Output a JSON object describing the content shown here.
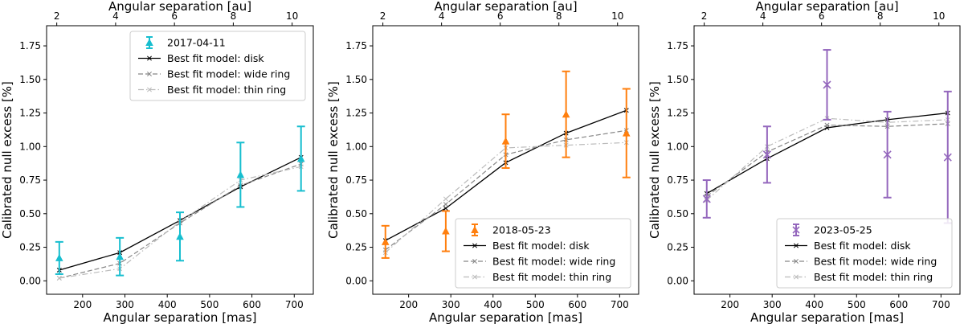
{
  "chart_data": [
    {
      "type": "line",
      "xlabel": "Angular separation [mas]",
      "ylabel": "Calibrated null excess [%]",
      "x2label": "Angular separation [au]",
      "xlim": [
        115,
        745
      ],
      "ylim": [
        -0.1,
        1.9
      ],
      "xticks": [
        200,
        300,
        400,
        500,
        600,
        700
      ],
      "yticks": [
        0.0,
        0.25,
        0.5,
        0.75,
        1.0,
        1.25,
        1.5,
        1.75
      ],
      "x2ticks": [
        2,
        4,
        6,
        8,
        10
      ],
      "x2_mas_per_au": 69.5,
      "legend_position": "top-right",
      "observations": {
        "name": "2017-04-11",
        "color": "#17becf",
        "marker": "triangle",
        "x": [
          145,
          288,
          430,
          573,
          716
        ],
        "y": [
          0.17,
          0.18,
          0.33,
          0.79,
          0.91
        ],
        "err": [
          0.12,
          0.14,
          0.18,
          0.24,
          0.24
        ]
      },
      "models": [
        {
          "name": "Best fit model: disk",
          "style": "solid",
          "color": "#000000",
          "x": [
            145,
            288,
            430,
            573,
            716
          ],
          "y": [
            0.08,
            0.21,
            0.45,
            0.7,
            0.92
          ]
        },
        {
          "name": "Best fit model: wide ring",
          "style": "dashed",
          "color": "#888888",
          "x": [
            145,
            288,
            430,
            573,
            716
          ],
          "y": [
            0.02,
            0.13,
            0.43,
            0.71,
            0.87
          ]
        },
        {
          "name": "Best fit model: thin ring",
          "style": "dashdot",
          "color": "#bbbbbb",
          "x": [
            145,
            288,
            430,
            573,
            716
          ],
          "y": [
            0.02,
            0.09,
            0.44,
            0.75,
            0.85
          ]
        }
      ]
    },
    {
      "type": "line",
      "xlabel": "Angular separation [mas]",
      "ylabel": "Calibrated null excess [%]",
      "x2label": "Angular separation [au]",
      "xlim": [
        115,
        745
      ],
      "ylim": [
        -0.1,
        1.9
      ],
      "xticks": [
        200,
        300,
        400,
        500,
        600,
        700
      ],
      "yticks": [
        0.0,
        0.25,
        0.5,
        0.75,
        1.0,
        1.25,
        1.5,
        1.75
      ],
      "x2ticks": [
        2,
        4,
        6,
        8,
        10
      ],
      "x2_mas_per_au": 69.5,
      "legend_position": "bottom-right",
      "observations": {
        "name": "2018-05-23",
        "color": "#ff7f0e",
        "marker": "triangle",
        "x": [
          145,
          288,
          430,
          573,
          716
        ],
        "y": [
          0.29,
          0.37,
          1.04,
          1.24,
          1.1
        ],
        "err": [
          0.12,
          0.15,
          0.2,
          0.32,
          0.33
        ]
      },
      "models": [
        {
          "name": "Best fit model: disk",
          "style": "solid",
          "color": "#000000",
          "x": [
            145,
            288,
            430,
            573,
            716
          ],
          "y": [
            0.3,
            0.54,
            0.88,
            1.1,
            1.27
          ]
        },
        {
          "name": "Best fit model: wide ring",
          "style": "dashed",
          "color": "#888888",
          "x": [
            145,
            288,
            430,
            573,
            716
          ],
          "y": [
            0.23,
            0.57,
            0.94,
            1.05,
            1.12
          ]
        },
        {
          "name": "Best fit model: thin ring",
          "style": "dashdot",
          "color": "#bbbbbb",
          "x": [
            145,
            288,
            430,
            573,
            716
          ],
          "y": [
            0.21,
            0.61,
            0.99,
            1.01,
            1.03
          ]
        }
      ]
    },
    {
      "type": "line",
      "xlabel": "Angular separation [mas]",
      "ylabel": "Calibrated null excess [%]",
      "x2label": "Angular separation [au]",
      "xlim": [
        115,
        745
      ],
      "ylim": [
        -0.1,
        1.9
      ],
      "xticks": [
        200,
        300,
        400,
        500,
        600,
        700
      ],
      "yticks": [
        0.0,
        0.25,
        0.5,
        0.75,
        1.0,
        1.25,
        1.5,
        1.75
      ],
      "x2ticks": [
        2,
        4,
        6,
        8,
        10
      ],
      "x2_mas_per_au": 69.5,
      "legend_position": "bottom-right",
      "observations": {
        "name": "2023-05-25",
        "color": "#9467bd",
        "marker": "x",
        "x": [
          145,
          288,
          430,
          573,
          716
        ],
        "y": [
          0.61,
          0.94,
          1.46,
          0.94,
          0.92
        ],
        "err": [
          0.14,
          0.21,
          0.26,
          0.32,
          0.49
        ]
      },
      "models": [
        {
          "name": "Best fit model: disk",
          "style": "solid",
          "color": "#000000",
          "x": [
            145,
            288,
            430,
            573,
            716
          ],
          "y": [
            0.65,
            0.91,
            1.14,
            1.2,
            1.25
          ]
        },
        {
          "name": "Best fit model: wide ring",
          "style": "dashed",
          "color": "#888888",
          "x": [
            145,
            288,
            430,
            573,
            716
          ],
          "y": [
            0.63,
            0.96,
            1.16,
            1.15,
            1.17
          ]
        },
        {
          "name": "Best fit model: thin ring",
          "style": "dashdot",
          "color": "#bbbbbb",
          "x": [
            145,
            288,
            430,
            573,
            716
          ],
          "y": [
            0.6,
            1.0,
            1.21,
            1.18,
            1.2
          ]
        }
      ]
    }
  ]
}
